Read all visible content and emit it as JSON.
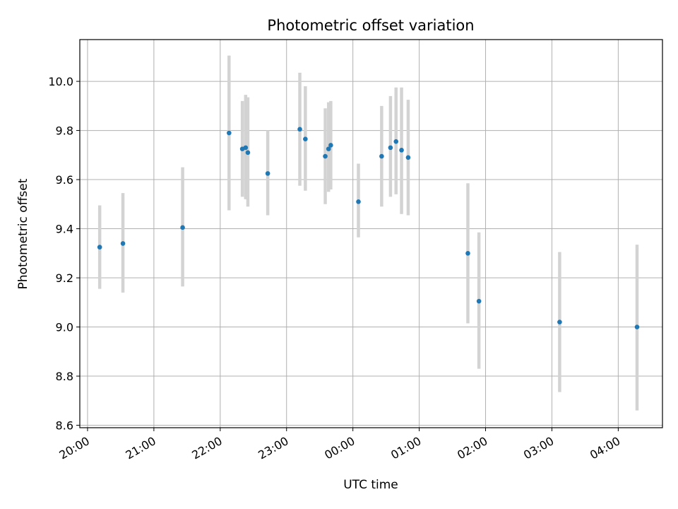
{
  "chart_data": {
    "type": "scatter",
    "title": "Photometric offset variation",
    "xlabel": "UTC time",
    "ylabel": "Photometric offset",
    "xlim": [
      "2000-01-01 19:53",
      "2000-01-02 04:40"
    ],
    "ylim": [
      8.59,
      10.17
    ],
    "x_ticks": [
      {
        "t": "2000-01-01 20:00",
        "label": "20:00"
      },
      {
        "t": "2000-01-01 21:00",
        "label": "21:00"
      },
      {
        "t": "2000-01-01 22:00",
        "label": "22:00"
      },
      {
        "t": "2000-01-01 23:00",
        "label": "23:00"
      },
      {
        "t": "2000-01-02 00:00",
        "label": "00:00"
      },
      {
        "t": "2000-01-02 01:00",
        "label": "01:00"
      },
      {
        "t": "2000-01-02 02:00",
        "label": "02:00"
      },
      {
        "t": "2000-01-02 03:00",
        "label": "03:00"
      },
      {
        "t": "2000-01-02 04:00",
        "label": "04:00"
      }
    ],
    "y_ticks": [
      {
        "v": 8.6,
        "label": "8.6"
      },
      {
        "v": 8.8,
        "label": "8.8"
      },
      {
        "v": 9.0,
        "label": "9.0"
      },
      {
        "v": 9.2,
        "label": "9.2"
      },
      {
        "v": 9.4,
        "label": "9.4"
      },
      {
        "v": 9.6,
        "label": "9.6"
      },
      {
        "v": 9.8,
        "label": "9.8"
      },
      {
        "v": 10.0,
        "label": "10.0"
      }
    ],
    "grid": true,
    "series": [
      {
        "marker_color": "#1f77b4",
        "errorbar_color": "#d3d3d3",
        "points": [
          {
            "t": "2000-01-01 20:11",
            "y": 9.325,
            "lo": 9.155,
            "hi": 9.495
          },
          {
            "t": "2000-01-01 20:32",
            "y": 9.34,
            "lo": 9.14,
            "hi": 9.545
          },
          {
            "t": "2000-01-01 21:26",
            "y": 9.405,
            "lo": 9.165,
            "hi": 9.65
          },
          {
            "t": "2000-01-01 22:08",
            "y": 9.79,
            "lo": 9.475,
            "hi": 10.105
          },
          {
            "t": "2000-01-01 22:20",
            "y": 9.725,
            "lo": 9.53,
            "hi": 9.92
          },
          {
            "t": "2000-01-01 22:23",
            "y": 9.73,
            "lo": 9.52,
            "hi": 9.945
          },
          {
            "t": "2000-01-01 22:25",
            "y": 9.71,
            "lo": 9.49,
            "hi": 9.935
          },
          {
            "t": "2000-01-01 22:43",
            "y": 9.625,
            "lo": 9.455,
            "hi": 9.8
          },
          {
            "t": "2000-01-01 23:12",
            "y": 9.805,
            "lo": 9.575,
            "hi": 10.035
          },
          {
            "t": "2000-01-01 23:17",
            "y": 9.765,
            "lo": 9.555,
            "hi": 9.98
          },
          {
            "t": "2000-01-01 23:35",
            "y": 9.695,
            "lo": 9.5,
            "hi": 9.89
          },
          {
            "t": "2000-01-01 23:38",
            "y": 9.725,
            "lo": 9.55,
            "hi": 9.915
          },
          {
            "t": "2000-01-01 23:40",
            "y": 9.74,
            "lo": 9.56,
            "hi": 9.92
          },
          {
            "t": "2000-01-02 00:05",
            "y": 9.51,
            "lo": 9.365,
            "hi": 9.665
          },
          {
            "t": "2000-01-02 00:26",
            "y": 9.695,
            "lo": 9.49,
            "hi": 9.9
          },
          {
            "t": "2000-01-02 00:34",
            "y": 9.73,
            "lo": 9.53,
            "hi": 9.94
          },
          {
            "t": "2000-01-02 00:39",
            "y": 9.755,
            "lo": 9.54,
            "hi": 9.975
          },
          {
            "t": "2000-01-02 00:44",
            "y": 9.72,
            "lo": 9.46,
            "hi": 9.975
          },
          {
            "t": "2000-01-02 00:50",
            "y": 9.69,
            "lo": 9.455,
            "hi": 9.925
          },
          {
            "t": "2000-01-02 01:44",
            "y": 9.3,
            "lo": 9.015,
            "hi": 9.585
          },
          {
            "t": "2000-01-02 01:54",
            "y": 9.105,
            "lo": 8.83,
            "hi": 9.385
          },
          {
            "t": "2000-01-02 03:07",
            "y": 9.02,
            "lo": 8.735,
            "hi": 9.305
          },
          {
            "t": "2000-01-02 04:17",
            "y": 9.0,
            "lo": 8.66,
            "hi": 9.335
          }
        ]
      }
    ]
  }
}
